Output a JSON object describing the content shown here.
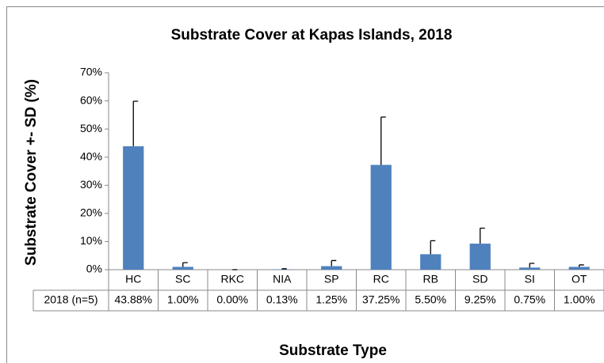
{
  "chart_data": {
    "type": "bar",
    "title": "Substrate Cover at Kapas Islands, 2018",
    "y_label": "Substrate Cover +- SD (%)",
    "x_label": "Substrate Type",
    "categories": [
      "HC",
      "SC",
      "RKC",
      "NIA",
      "SP",
      "RC",
      "RB",
      "SD",
      "SI",
      "OT"
    ],
    "series": [
      {
        "name": "2018 (n=5)",
        "color": "#4f81bd",
        "values": [
          43.88,
          1.0,
          0.0,
          0.13,
          1.25,
          37.25,
          5.5,
          9.25,
          0.75,
          1.0
        ],
        "value_labels": [
          "43.88%",
          "1.00%",
          "0.00%",
          "0.13%",
          "1.25%",
          "37.25%",
          "5.50%",
          "9.25%",
          "0.75%",
          "1.00%"
        ],
        "errors": [
          16,
          1.5,
          0,
          0.2,
          2,
          17,
          4.8,
          5.5,
          1.5,
          0.7
        ]
      }
    ],
    "ylim": [
      0,
      70
    ],
    "yticks": [
      {
        "value": 0,
        "label": "0%"
      },
      {
        "value": 10,
        "label": "10%"
      },
      {
        "value": 20,
        "label": "20%"
      },
      {
        "value": 30,
        "label": "30%"
      },
      {
        "value": 40,
        "label": "40%"
      },
      {
        "value": 50,
        "label": "50%"
      },
      {
        "value": 60,
        "label": "60%"
      },
      {
        "value": 70,
        "label": "70%"
      }
    ],
    "grid": false
  }
}
